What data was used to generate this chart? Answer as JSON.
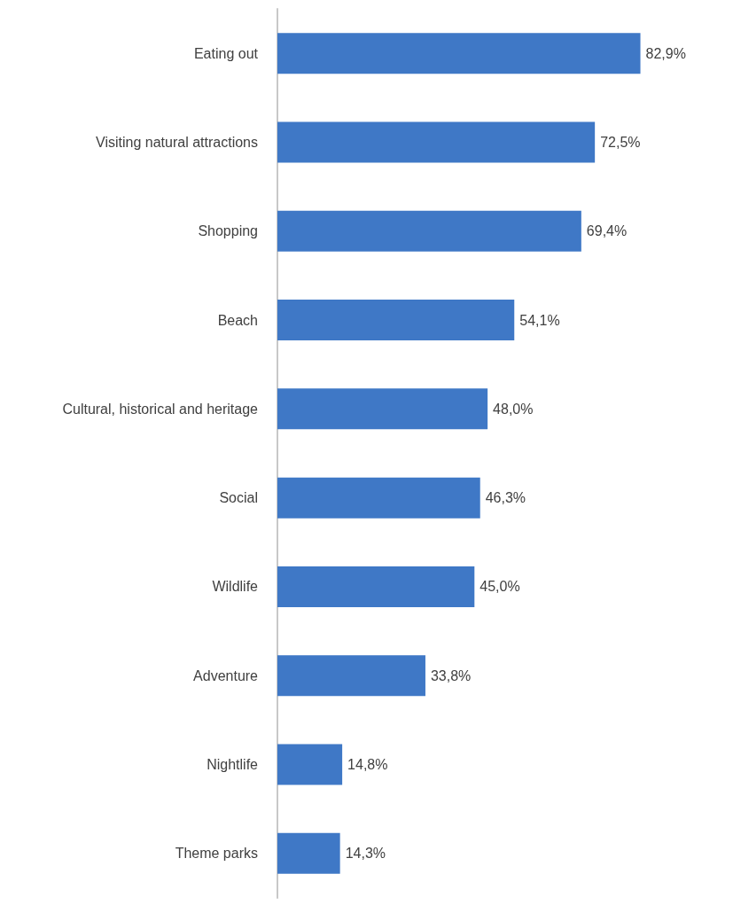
{
  "chart_data": {
    "type": "bar",
    "orientation": "horizontal",
    "categories": [
      "Eating out",
      "Visiting natural attractions",
      "Shopping",
      "Beach",
      "Cultural, historical and heritage",
      "Social",
      "Wildlife",
      "Adventure",
      "Nightlife",
      "Theme parks"
    ],
    "values": [
      82.9,
      72.5,
      69.4,
      54.1,
      48.0,
      46.3,
      45.0,
      33.8,
      14.8,
      14.3
    ],
    "value_labels": [
      "82,9%",
      "72,5%",
      "69,4%",
      "54,1%",
      "48,0%",
      "46,3%",
      "45,0%",
      "33,8%",
      "14,8%",
      "14,3%"
    ],
    "color": "#3f78c6"
  }
}
